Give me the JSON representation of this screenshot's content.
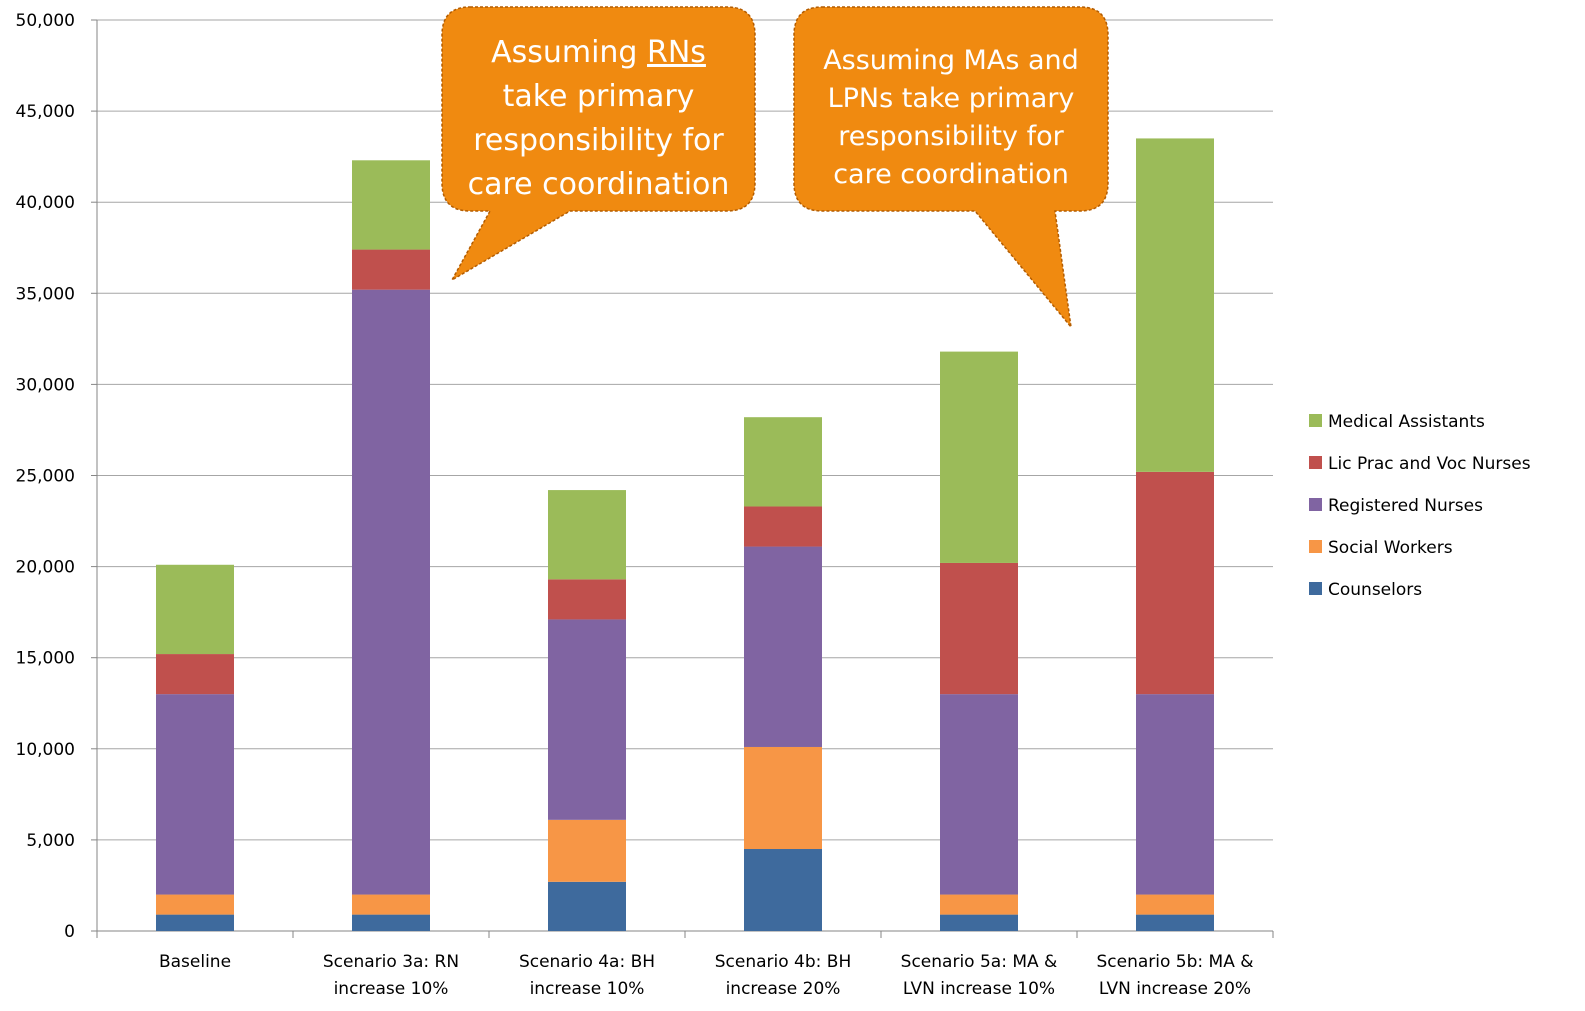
{
  "chart_data": {
    "type": "bar",
    "stacked": true,
    "title": "",
    "xlabel": "",
    "ylabel": "",
    "ylim": [
      0,
      50000
    ],
    "yticks": [
      0,
      5000,
      10000,
      15000,
      20000,
      25000,
      30000,
      35000,
      40000,
      45000,
      50000
    ],
    "ytick_labels": [
      "0",
      "5,000",
      "10,000",
      "15,000",
      "20,000",
      "25,000",
      "30,000",
      "35,000",
      "40,000",
      "45,000",
      "50,000"
    ],
    "grid": true,
    "legend_position": "right",
    "categories": [
      [
        "Baseline"
      ],
      [
        "Scenario 3a: RN",
        "increase 10%"
      ],
      [
        "Scenario 4a: BH",
        "increase 10%"
      ],
      [
        "Scenario 4b: BH",
        "increase 20%"
      ],
      [
        "Scenario 5a: MA &",
        "LVN increase 10%"
      ],
      [
        "Scenario 5b: MA &",
        "LVN increase 20%"
      ]
    ],
    "series": [
      {
        "name": "Counselors",
        "color": "#3E6A9D",
        "values": [
          900,
          900,
          2700,
          4500,
          900,
          900
        ]
      },
      {
        "name": "Social Workers",
        "color": "#F79646",
        "values": [
          1100,
          1100,
          3400,
          5600,
          1100,
          1100
        ]
      },
      {
        "name": "Registered Nurses",
        "color": "#8064A2",
        "values": [
          11000,
          33200,
          11000,
          11000,
          11000,
          11000
        ]
      },
      {
        "name": "Lic Prac and Voc Nurses",
        "color": "#C0504D",
        "values": [
          2200,
          2200,
          2200,
          2200,
          7200,
          12200
        ]
      },
      {
        "name": "Medical Assistants",
        "color": "#9BBB59",
        "values": [
          4900,
          4900,
          4900,
          4900,
          11600,
          18300
        ]
      }
    ],
    "annotations": [
      {
        "lines": [
          "Assuming RNs",
          "take primary",
          "responsibility for",
          "care coordination"
        ],
        "underline": "RNs"
      },
      {
        "lines": [
          "Assuming MAs and",
          "LPNs  take primary",
          "responsibility for",
          "care coordination"
        ]
      }
    ]
  }
}
